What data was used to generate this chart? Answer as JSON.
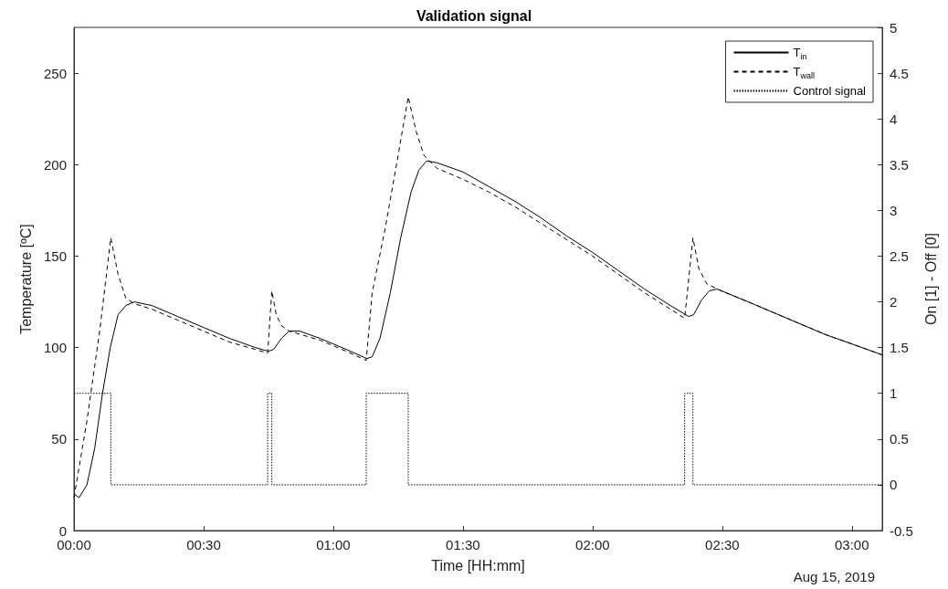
{
  "chart_data": {
    "type": "line",
    "title": "Validation signal",
    "xlabel": "Time [HH:mm]",
    "ylabel": "Temperature [ºC]",
    "y2label": "On [1] - Off [0]",
    "annotations": [
      "Aug 15, 2019"
    ],
    "xlim": [
      0,
      3.117
    ],
    "xticks": [
      {
        "value": 0,
        "label": "00:00"
      },
      {
        "value": 0.5,
        "label": "00:30"
      },
      {
        "value": 1,
        "label": "01:00"
      },
      {
        "value": 1.5,
        "label": "01:30"
      },
      {
        "value": 2,
        "label": "02:00"
      },
      {
        "value": 2.5,
        "label": "02:30"
      },
      {
        "value": 3,
        "label": "03:00"
      }
    ],
    "ylim": [
      0,
      275
    ],
    "yticks": [
      0,
      50,
      100,
      150,
      200,
      250
    ],
    "y2lim": [
      -0.5,
      5
    ],
    "y2ticks": [
      -0.5,
      0,
      0.5,
      1,
      1.5,
      2,
      2.5,
      3,
      3.5,
      4,
      4.5,
      5
    ],
    "grid": false,
    "legend": "top right",
    "marker": "none",
    "series": [
      {
        "name": "T$_{in}$",
        "color": "#000000",
        "line_style": "solid",
        "x": [
          0,
          0.02,
          0.05,
          0.08,
          0.11,
          0.14,
          0.17,
          0.2,
          0.233,
          0.3,
          0.4,
          0.5,
          0.6,
          0.7,
          0.75,
          0.77,
          0.8,
          0.83,
          0.87,
          0.95,
          1.05,
          1.13,
          1.15,
          1.18,
          1.22,
          1.26,
          1.3,
          1.33,
          1.36,
          1.4,
          1.5,
          1.6,
          1.7,
          1.8,
          1.9,
          2.0,
          2.1,
          2.2,
          2.3,
          2.37,
          2.39,
          2.42,
          2.45,
          2.48,
          2.6,
          2.7,
          2.8,
          2.9,
          3.0,
          3.117
        ],
        "values": [
          20,
          18,
          25,
          45,
          75,
          100,
          118,
          123,
          125,
          123,
          117,
          111,
          105,
          100,
          98,
          99,
          105,
          109,
          109,
          105,
          99,
          94,
          95,
          105,
          130,
          160,
          185,
          197,
          202,
          201,
          196,
          188,
          180,
          171,
          161,
          152,
          142,
          132,
          123,
          117,
          118,
          126,
          131,
          132,
          125,
          119,
          113,
          107,
          102,
          96
        ]
      },
      {
        "name": "T$_{wall}$",
        "color": "#000000",
        "line_style": "dashed",
        "x": [
          0,
          0.05,
          0.1,
          0.142,
          0.17,
          0.2,
          0.233,
          0.3,
          0.4,
          0.5,
          0.6,
          0.7,
          0.747,
          0.763,
          0.78,
          0.8,
          0.83,
          0.95,
          1.05,
          1.127,
          1.15,
          1.2,
          1.25,
          1.289,
          1.32,
          1.35,
          1.4,
          1.5,
          1.6,
          1.7,
          1.8,
          1.9,
          2.0,
          2.1,
          2.2,
          2.3,
          2.355,
          2.387,
          2.41,
          2.44,
          2.48,
          2.6,
          2.7,
          2.8,
          2.9,
          3.0,
          3.117
        ],
        "values": [
          18,
          60,
          110,
          160,
          140,
          127,
          124,
          121,
          115,
          109,
          103,
          99,
          97,
          131,
          118,
          112,
          109,
          104,
          98,
          93,
          130,
          165,
          205,
          237,
          218,
          205,
          198,
          192,
          185,
          177,
          168,
          159,
          150,
          140,
          130,
          121,
          116,
          160,
          143,
          135,
          132,
          125,
          119,
          113,
          107,
          102,
          96
        ]
      },
      {
        "name": "Control signal",
        "color": "#000000",
        "type": "step",
        "axis": "y2",
        "line_style": "dotted",
        "x": [
          0,
          0.142,
          0.747,
          0.763,
          1.127,
          1.289,
          2.355,
          2.387,
          3.117
        ],
        "values": [
          1,
          0,
          1,
          0,
          1,
          0,
          1,
          0,
          0
        ]
      }
    ]
  }
}
